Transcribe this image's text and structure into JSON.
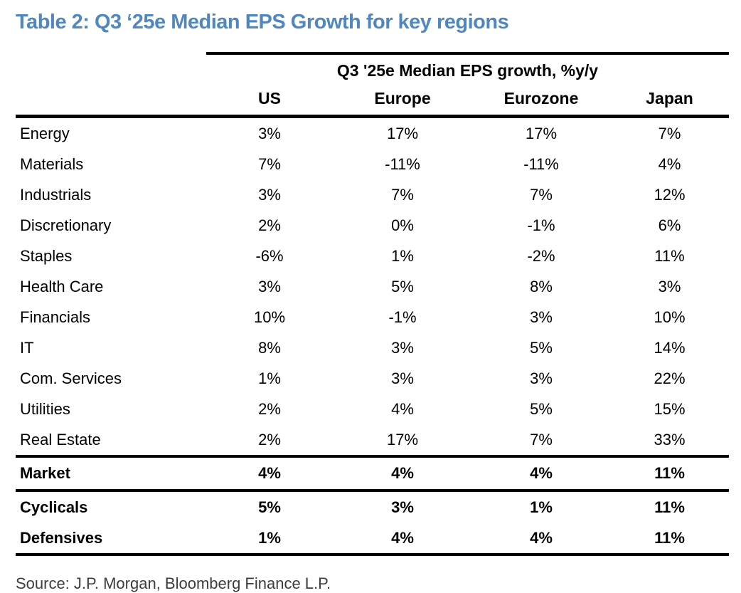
{
  "title": "Table 2: Q3 ‘25e Median EPS Growth for key regions",
  "table": {
    "span_header": "Q3 '25e Median EPS growth, %y/y",
    "columns": [
      "US",
      "Europe",
      "Eurozone",
      "Japan"
    ],
    "rows": [
      {
        "label": "Energy",
        "values": [
          "3%",
          "17%",
          "17%",
          "7%"
        ]
      },
      {
        "label": "Materials",
        "values": [
          "7%",
          "-11%",
          "-11%",
          "4%"
        ]
      },
      {
        "label": "Industrials",
        "values": [
          "3%",
          "7%",
          "7%",
          "12%"
        ]
      },
      {
        "label": "Discretionary",
        "values": [
          "2%",
          "0%",
          "-1%",
          "6%"
        ]
      },
      {
        "label": "Staples",
        "values": [
          "-6%",
          "1%",
          "-2%",
          "11%"
        ]
      },
      {
        "label": "Health Care",
        "values": [
          "3%",
          "5%",
          "8%",
          "3%"
        ]
      },
      {
        "label": "Financials",
        "values": [
          "10%",
          "-1%",
          "3%",
          "10%"
        ]
      },
      {
        "label": "IT",
        "values": [
          "8%",
          "3%",
          "5%",
          "14%"
        ]
      },
      {
        "label": "Com. Services",
        "values": [
          "1%",
          "3%",
          "3%",
          "22%"
        ]
      },
      {
        "label": "Utilities",
        "values": [
          "2%",
          "4%",
          "5%",
          "15%"
        ]
      },
      {
        "label": "Real Estate",
        "values": [
          "2%",
          "17%",
          "7%",
          "33%"
        ]
      }
    ],
    "summary_rows": [
      {
        "label": "Market",
        "values": [
          "4%",
          "4%",
          "4%",
          "11%"
        ]
      },
      {
        "label": "Cyclicals",
        "values": [
          "5%",
          "3%",
          "1%",
          "11%"
        ]
      },
      {
        "label": "Defensives",
        "values": [
          "1%",
          "4%",
          "4%",
          "11%"
        ]
      }
    ]
  },
  "source": "Source: J.P. Morgan, Bloomberg Finance L.P.",
  "colors": {
    "title_blue": "#4F87BE",
    "rule_black": "#000000"
  },
  "chart_data": {
    "type": "table",
    "title": "Q3 '25e Median EPS growth, %y/y",
    "categories": [
      "Energy",
      "Materials",
      "Industrials",
      "Discretionary",
      "Staples",
      "Health Care",
      "Financials",
      "IT",
      "Com. Services",
      "Utilities",
      "Real Estate",
      "Market",
      "Cyclicals",
      "Defensives"
    ],
    "series": [
      {
        "name": "US",
        "values": [
          3,
          7,
          3,
          2,
          -6,
          3,
          10,
          8,
          1,
          2,
          2,
          4,
          5,
          1
        ]
      },
      {
        "name": "Europe",
        "values": [
          17,
          -11,
          7,
          0,
          1,
          5,
          -1,
          3,
          3,
          4,
          17,
          4,
          3,
          4
        ]
      },
      {
        "name": "Eurozone",
        "values": [
          17,
          -11,
          7,
          -1,
          -2,
          8,
          3,
          5,
          3,
          5,
          7,
          4,
          1,
          4
        ]
      },
      {
        "name": "Japan",
        "values": [
          7,
          4,
          12,
          6,
          11,
          3,
          10,
          14,
          22,
          15,
          33,
          11,
          11,
          11
        ]
      }
    ],
    "unit": "%"
  }
}
